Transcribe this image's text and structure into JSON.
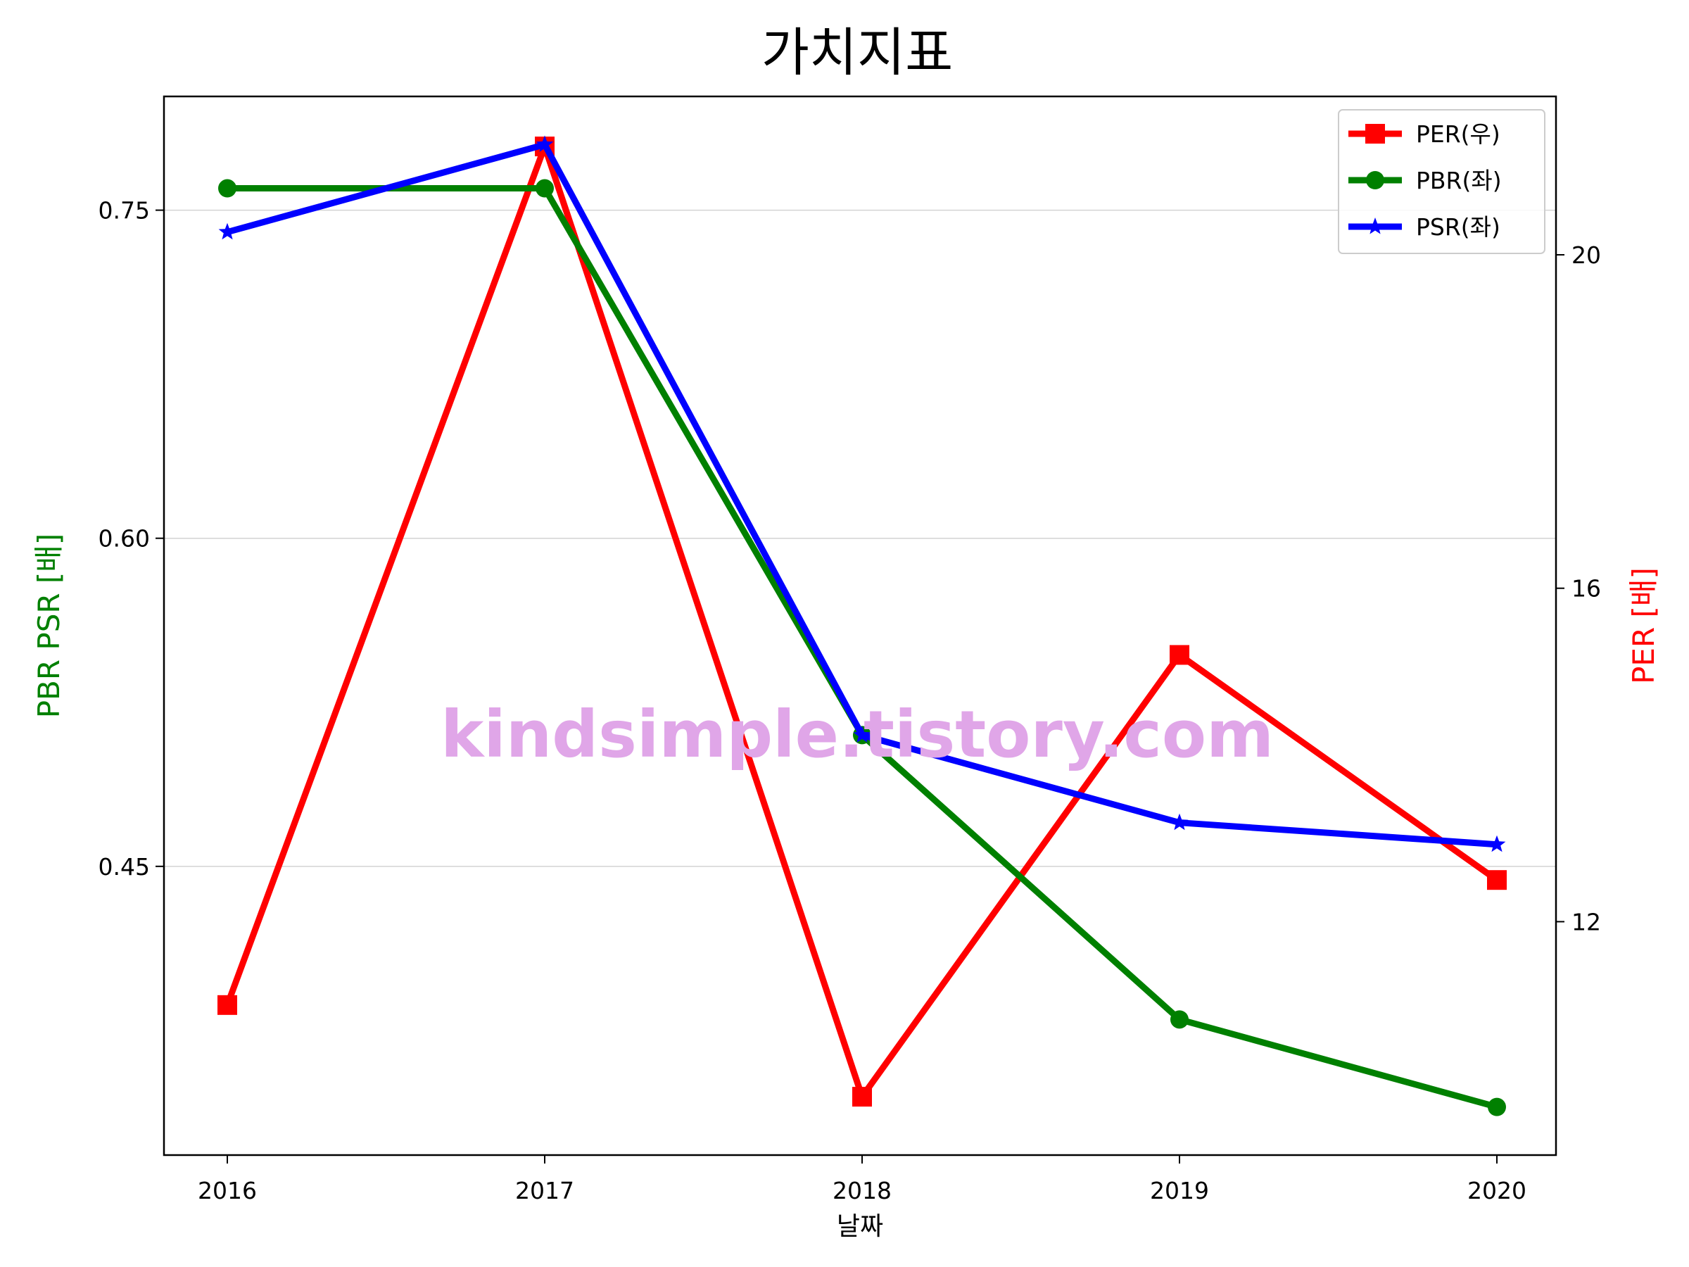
{
  "chart_data": {
    "type": "line",
    "title": "가치지표",
    "xlabel": "날짜",
    "ylabel_left": "PBR PSR [배]",
    "ylabel_right": "PER [배]",
    "categories": [
      "2016",
      "2017",
      "2018",
      "2019",
      "2020"
    ],
    "left_axis": {
      "ylim": [
        0.318,
        0.802
      ],
      "ticks": [
        "0.45",
        "0.60",
        "0.75"
      ]
    },
    "right_axis": {
      "ylim": [
        9.2,
        21.9
      ],
      "ticks": [
        "12",
        "16",
        "20"
      ]
    },
    "grid": "horizontal",
    "legend_position": "top-right",
    "series": [
      {
        "name": "PER(우)",
        "axis": "right",
        "color": "#ff0000",
        "marker": "square",
        "values": [
          11.0,
          21.3,
          9.9,
          15.2,
          12.5
        ]
      },
      {
        "name": "PBR(좌)",
        "axis": "left",
        "color": "#008000",
        "marker": "circle",
        "values": [
          0.76,
          0.76,
          0.51,
          0.38,
          0.34
        ]
      },
      {
        "name": "PSR(좌)",
        "axis": "left",
        "color": "#0000ff",
        "marker": "star",
        "values": [
          0.74,
          0.78,
          0.51,
          0.47,
          0.46
        ]
      }
    ]
  },
  "watermark": "kindsimple.tistory.com",
  "colors": {
    "left_label": "#008000",
    "right_label": "#ff0000",
    "watermark": "#e0a6e8",
    "grid": "#d3d3d3"
  }
}
